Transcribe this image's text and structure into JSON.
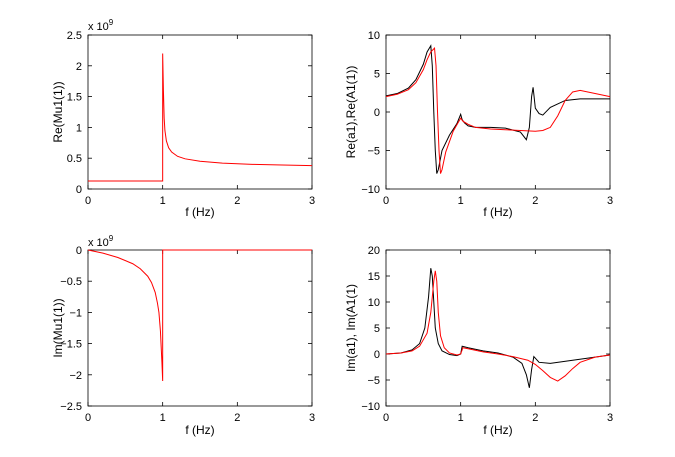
{
  "chart_data": [
    {
      "type": "line",
      "panel": "top-left",
      "xlabel": "f (Hz)",
      "ylabel": "Re(Mu1(1))",
      "xlim": [
        0,
        3
      ],
      "ylim": [
        0,
        2.5
      ],
      "xticks": [
        0,
        1,
        2,
        3
      ],
      "xtick_labels": [
        "0",
        "1",
        "2",
        "3"
      ],
      "yticks": [
        0,
        0.5,
        1,
        1.5,
        2,
        2.5
      ],
      "ytick_labels": [
        "0",
        "0.5",
        "1",
        "1.5",
        "2",
        "2.5"
      ],
      "exponent_label": "x 10",
      "exponent_power": "9",
      "series": [
        {
          "name": "red",
          "color": "#ff0000",
          "x": [
            0,
            0.5,
            0.98,
            0.99,
            1.0,
            1.0,
            1.01,
            1.02,
            1.03,
            1.05,
            1.08,
            1.12,
            1.2,
            1.3,
            1.5,
            1.8,
            2.2,
            2.6,
            3.0
          ],
          "y": [
            0.13,
            0.13,
            0.13,
            0.13,
            0.13,
            2.2,
            1.6,
            1.15,
            0.95,
            0.78,
            0.67,
            0.6,
            0.53,
            0.49,
            0.45,
            0.42,
            0.4,
            0.39,
            0.38
          ]
        }
      ]
    },
    {
      "type": "line",
      "panel": "top-right",
      "xlabel": "f (Hz)",
      "ylabel": "Re(a1),Re(A1(1))",
      "xlim": [
        0,
        3
      ],
      "ylim": [
        -10,
        10
      ],
      "xticks": [
        0,
        1,
        2,
        3
      ],
      "xtick_labels": [
        "0",
        "1",
        "2",
        "3"
      ],
      "yticks": [
        -10,
        -5,
        0,
        5,
        10
      ],
      "ytick_labels": [
        "−10",
        "−5",
        "0",
        "5",
        "10"
      ],
      "series": [
        {
          "name": "black",
          "color": "#000000",
          "x": [
            0,
            0.15,
            0.3,
            0.4,
            0.5,
            0.55,
            0.6,
            0.62,
            0.64,
            0.66,
            0.68,
            0.7,
            0.75,
            0.85,
            0.95,
            1.0,
            1.02,
            1.05,
            1.1,
            1.2,
            1.4,
            1.6,
            1.8,
            1.88,
            1.92,
            1.95,
            1.97,
            2.0,
            2.05,
            2.1,
            2.2,
            2.4,
            2.6,
            2.8,
            3.0
          ],
          "y": [
            2.1,
            2.4,
            3.1,
            4.2,
            6.2,
            7.8,
            8.6,
            6.0,
            0.0,
            -5.0,
            -8.0,
            -7.5,
            -5.0,
            -3.0,
            -1.5,
            -0.3,
            -1.0,
            -1.4,
            -1.8,
            -2.0,
            -2.0,
            -2.1,
            -2.6,
            -3.6,
            -2.0,
            2.0,
            3.2,
            0.5,
            -0.2,
            -0.4,
            0.6,
            1.5,
            1.7,
            1.7,
            1.7
          ]
        },
        {
          "name": "red",
          "color": "#ff0000",
          "x": [
            0,
            0.15,
            0.3,
            0.4,
            0.5,
            0.55,
            0.6,
            0.65,
            0.67,
            0.69,
            0.71,
            0.73,
            0.75,
            0.8,
            0.9,
            1.0,
            1.03,
            1.1,
            1.2,
            1.4,
            1.6,
            1.8,
            2.0,
            2.1,
            2.2,
            2.3,
            2.4,
            2.5,
            2.6,
            2.8,
            3.0
          ],
          "y": [
            2.0,
            2.3,
            2.9,
            3.8,
            5.5,
            6.8,
            7.8,
            8.3,
            6.0,
            0.0,
            -5.0,
            -8.0,
            -7.5,
            -5.2,
            -2.5,
            -0.8,
            -1.2,
            -1.6,
            -2.0,
            -2.2,
            -2.3,
            -2.4,
            -2.5,
            -2.4,
            -2.0,
            -0.5,
            1.5,
            2.6,
            2.8,
            2.4,
            2.0
          ]
        }
      ]
    },
    {
      "type": "line",
      "panel": "bottom-left",
      "xlabel": "f (Hz)",
      "ylabel": "Im(Mu1(1))",
      "xlim": [
        0,
        3
      ],
      "ylim": [
        -2.5,
        0
      ],
      "xticks": [
        0,
        1,
        2,
        3
      ],
      "xtick_labels": [
        "0",
        "1",
        "2",
        "3"
      ],
      "yticks": [
        -2.5,
        -2,
        -1.5,
        -1,
        -0.5,
        0
      ],
      "ytick_labels": [
        "−2.5",
        "−2",
        "−1.5",
        "−1",
        "−0.5",
        "0"
      ],
      "exponent_label": "x 10",
      "exponent_power": "9",
      "series": [
        {
          "name": "red",
          "color": "#ff0000",
          "x": [
            0,
            0.2,
            0.4,
            0.6,
            0.7,
            0.8,
            0.85,
            0.9,
            0.93,
            0.95,
            0.97,
            0.98,
            0.99,
            1.0,
            1.0,
            1.5,
            2.0,
            2.5,
            3.0
          ],
          "y": [
            0.0,
            -0.05,
            -0.12,
            -0.22,
            -0.3,
            -0.42,
            -0.52,
            -0.68,
            -0.85,
            -1.0,
            -1.3,
            -1.55,
            -1.8,
            -2.1,
            0.0,
            0.0,
            0.0,
            0.0,
            0.0
          ]
        }
      ]
    },
    {
      "type": "line",
      "panel": "bottom-right",
      "xlabel": "f (Hz)",
      "ylabel": "Im(a1), Im(A1(1)",
      "xlim": [
        0,
        3
      ],
      "ylim": [
        -10,
        20
      ],
      "xticks": [
        0,
        1,
        2,
        3
      ],
      "xtick_labels": [
        "0",
        "1",
        "2",
        "3"
      ],
      "yticks": [
        -10,
        -5,
        0,
        5,
        10,
        15,
        20
      ],
      "ytick_labels": [
        "−10",
        "−5",
        "0",
        "5",
        "10",
        "15",
        "20"
      ],
      "series": [
        {
          "name": "black",
          "color": "#000000",
          "x": [
            0,
            0.2,
            0.35,
            0.45,
            0.52,
            0.57,
            0.6,
            0.62,
            0.64,
            0.66,
            0.7,
            0.75,
            0.85,
            0.95,
            1.0,
            1.02,
            1.1,
            1.3,
            1.5,
            1.7,
            1.82,
            1.88,
            1.92,
            1.95,
            1.98,
            2.0,
            2.05,
            2.2,
            2.5,
            2.8,
            3.0
          ],
          "y": [
            0.0,
            0.2,
            0.8,
            2.0,
            5.0,
            11.0,
            16.5,
            15.0,
            10.0,
            5.0,
            2.0,
            0.6,
            -0.1,
            -0.3,
            0.0,
            1.5,
            1.2,
            0.6,
            0.2,
            -0.6,
            -1.8,
            -4.0,
            -6.5,
            -3.0,
            -0.5,
            -0.8,
            -1.6,
            -1.8,
            -1.2,
            -0.6,
            -0.2
          ]
        },
        {
          "name": "red",
          "color": "#ff0000",
          "x": [
            0,
            0.2,
            0.35,
            0.45,
            0.55,
            0.6,
            0.64,
            0.66,
            0.68,
            0.7,
            0.73,
            0.78,
            0.85,
            0.95,
            1.0,
            1.03,
            1.1,
            1.3,
            1.5,
            1.7,
            1.9,
            2.0,
            2.1,
            2.2,
            2.3,
            2.4,
            2.5,
            2.6,
            2.8,
            3.0
          ],
          "y": [
            0.0,
            0.2,
            0.6,
            1.5,
            4.0,
            8.0,
            14.0,
            16.0,
            14.0,
            8.0,
            3.5,
            1.2,
            0.2,
            -0.2,
            0.0,
            1.2,
            1.0,
            0.4,
            0.0,
            -0.5,
            -1.2,
            -2.0,
            -3.2,
            -4.5,
            -5.2,
            -4.2,
            -2.8,
            -1.6,
            -0.6,
            -0.2
          ]
        }
      ]
    }
  ]
}
